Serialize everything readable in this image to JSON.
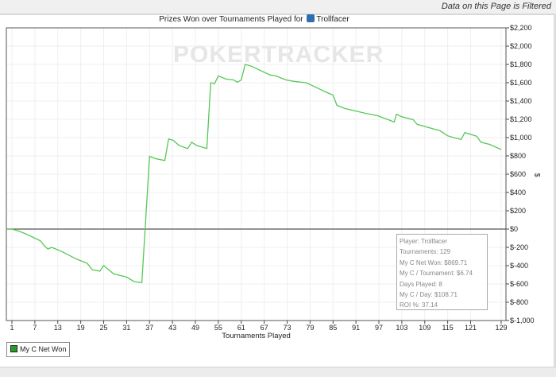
{
  "filter_notice": "Data on this Page is Filtered",
  "watermark": "POKERTRACKER",
  "chart_data": {
    "type": "line",
    "title": "Prizes Won over Tournaments Played for",
    "player": "Trollfacer",
    "xlabel": "Tournaments Played",
    "ylabel": "$",
    "xlim": [
      0,
      130.5
    ],
    "ylim": [
      -1000,
      2200
    ],
    "xticks": [
      1,
      7,
      13,
      19,
      25,
      31,
      37,
      43,
      49,
      55,
      61,
      67,
      73,
      79,
      85,
      91,
      97,
      103,
      109,
      115,
      121,
      129
    ],
    "yticks": [
      2200,
      2000,
      1800,
      1600,
      1400,
      1200,
      1000,
      800,
      600,
      400,
      200,
      0,
      -200,
      -400,
      -600,
      -800,
      -1000
    ],
    "ytick_labels": [
      "$2,200",
      "$2,000",
      "$1,800",
      "$1,600",
      "$1,400",
      "$1,200",
      "$1,000",
      "$800",
      "$600",
      "$400",
      "$200",
      "$0",
      "$-200",
      "$-400",
      "$-600",
      "$-800",
      "$-1,000"
    ],
    "grid": true,
    "legend_position": "bottom-left",
    "series": [
      {
        "name": "My C Net Won",
        "color": "#55c855",
        "x": [
          0,
          1,
          3,
          5,
          7,
          8.5,
          9.3,
          10.4,
          11.4,
          14,
          18,
          20.7,
          22,
          24,
          25,
          25.6,
          27.6,
          31,
          33,
          35,
          37,
          38.6,
          41,
          42,
          43.2,
          44.7,
          47,
          48,
          49.3,
          52,
          53,
          54,
          55,
          57,
          59,
          60,
          61,
          62,
          63.7,
          68.5,
          70,
          72.7,
          74.8,
          78,
          80,
          83,
          85,
          86,
          88,
          91,
          93.5,
          96.6,
          99.8,
          101,
          101.6,
          102.9,
          106,
          107,
          110,
          113,
          115,
          117,
          118.5,
          119.5,
          120.6,
          122.6,
          123.7,
          126,
          129
        ],
        "y": [
          0,
          0,
          -25,
          -60,
          -100,
          -130,
          -175,
          -218,
          -200,
          -245,
          -330,
          -375,
          -445,
          -460,
          -400,
          -420,
          -490,
          -525,
          -575,
          -585,
          795,
          770,
          750,
          985,
          970,
          915,
          880,
          950,
          915,
          880,
          1600,
          1590,
          1675,
          1640,
          1630,
          1605,
          1630,
          1800,
          1780,
          1685,
          1675,
          1630,
          1615,
          1600,
          1560,
          1500,
          1465,
          1355,
          1320,
          1290,
          1265,
          1240,
          1190,
          1170,
          1255,
          1230,
          1195,
          1145,
          1110,
          1075,
          1020,
          995,
          980,
          1055,
          1040,
          1015,
          950,
          925,
          869.71
        ]
      }
    ]
  },
  "tooltip": {
    "player": "Player: Trollfacer",
    "tournaments": "Tournaments: 129",
    "net_won": "My C Net Won: $869.71",
    "per_tournament": "My C / Tournament: $6.74",
    "days": "Days Played: 8",
    "per_day": "My C / Day: $108.71",
    "roi": "ROI %: 37.14"
  }
}
